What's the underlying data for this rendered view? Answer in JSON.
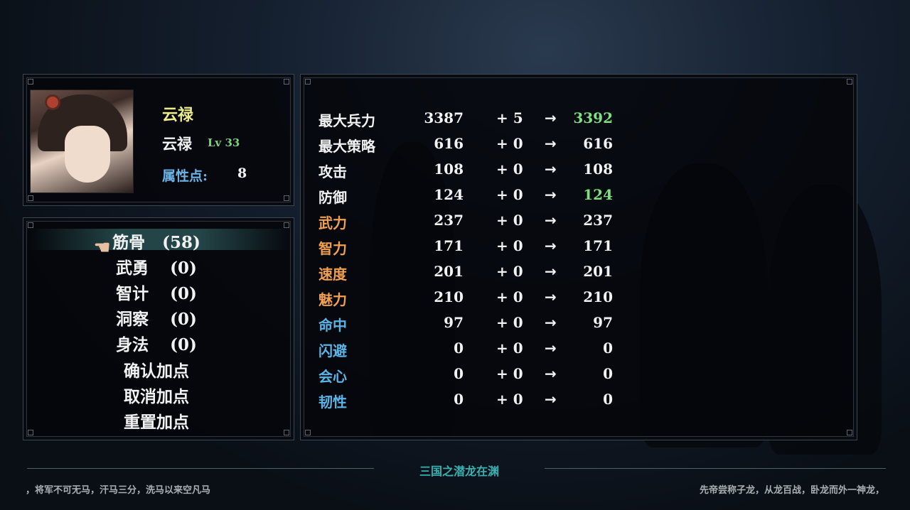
{
  "hero": {
    "title_name": "云禄",
    "name": "云禄",
    "level": "Lv 33",
    "points_label": "属性点:",
    "points": "8"
  },
  "menu": {
    "items": [
      {
        "label": "筋骨",
        "value": "(58)",
        "selected": true
      },
      {
        "label": "武勇",
        "value": "(0)"
      },
      {
        "label": "智计",
        "value": "(0)"
      },
      {
        "label": "洞察",
        "value": "(0)"
      },
      {
        "label": "身法",
        "value": "(0)"
      }
    ],
    "confirm": "确认加点",
    "cancel": "取消加点",
    "reset": "重置加点"
  },
  "stats": [
    {
      "label": "最大兵力",
      "base": "3387",
      "delta": "+ 5",
      "arrow": "→",
      "final": "3392",
      "label_color": "#f2f2f2",
      "final_color": "#7ee07e"
    },
    {
      "label": "最大策略",
      "base": "616",
      "delta": "+ 0",
      "arrow": "→",
      "final": "616",
      "label_color": "#f2f2f2",
      "final_color": "#f2f2f2"
    },
    {
      "label": "攻击",
      "base": "108",
      "delta": "+ 0",
      "arrow": "→",
      "final": "108",
      "label_color": "#f2f2f2",
      "final_color": "#f2f2f2"
    },
    {
      "label": "防御",
      "base": "124",
      "delta": "+ 0",
      "arrow": "→",
      "final": "124",
      "label_color": "#f2f2f2",
      "final_color": "#7ee07e"
    },
    {
      "label": "武力",
      "base": "237",
      "delta": "+ 0",
      "arrow": "→",
      "final": "237",
      "label_color": "#f0a050",
      "final_color": "#f2f2f2"
    },
    {
      "label": "智力",
      "base": "171",
      "delta": "+ 0",
      "arrow": "→",
      "final": "171",
      "label_color": "#f0a050",
      "final_color": "#f2f2f2"
    },
    {
      "label": "速度",
      "base": "201",
      "delta": "+ 0",
      "arrow": "→",
      "final": "201",
      "label_color": "#f0a050",
      "final_color": "#f2f2f2"
    },
    {
      "label": "魅力",
      "base": "210",
      "delta": "+ 0",
      "arrow": "→",
      "final": "210",
      "label_color": "#f0a050",
      "final_color": "#f2f2f2"
    },
    {
      "label": "命中",
      "base": "97",
      "delta": "+ 0",
      "arrow": "→",
      "final": "97",
      "label_color": "#5ab4e6",
      "final_color": "#f2f2f2"
    },
    {
      "label": "闪避",
      "base": "0",
      "delta": "+ 0",
      "arrow": "→",
      "final": "0",
      "label_color": "#5ab4e6",
      "final_color": "#f2f2f2"
    },
    {
      "label": "会心",
      "base": "0",
      "delta": "+ 0",
      "arrow": "→",
      "final": "0",
      "label_color": "#5ab4e6",
      "final_color": "#f2f2f2"
    },
    {
      "label": "韧性",
      "base": "0",
      "delta": "+ 0",
      "arrow": "→",
      "final": "0",
      "label_color": "#5ab4e6",
      "final_color": "#f2f2f2"
    }
  ],
  "footer": {
    "title": "三国之潜龙在渊",
    "left_quote": "，将军不可无马，汗马三分，洗马以来空凡马",
    "right_quote": "先帝尝称子龙，从龙百战，卧龙而外一神龙，"
  },
  "icons": {
    "cursor": "pointing-hand-icon"
  }
}
